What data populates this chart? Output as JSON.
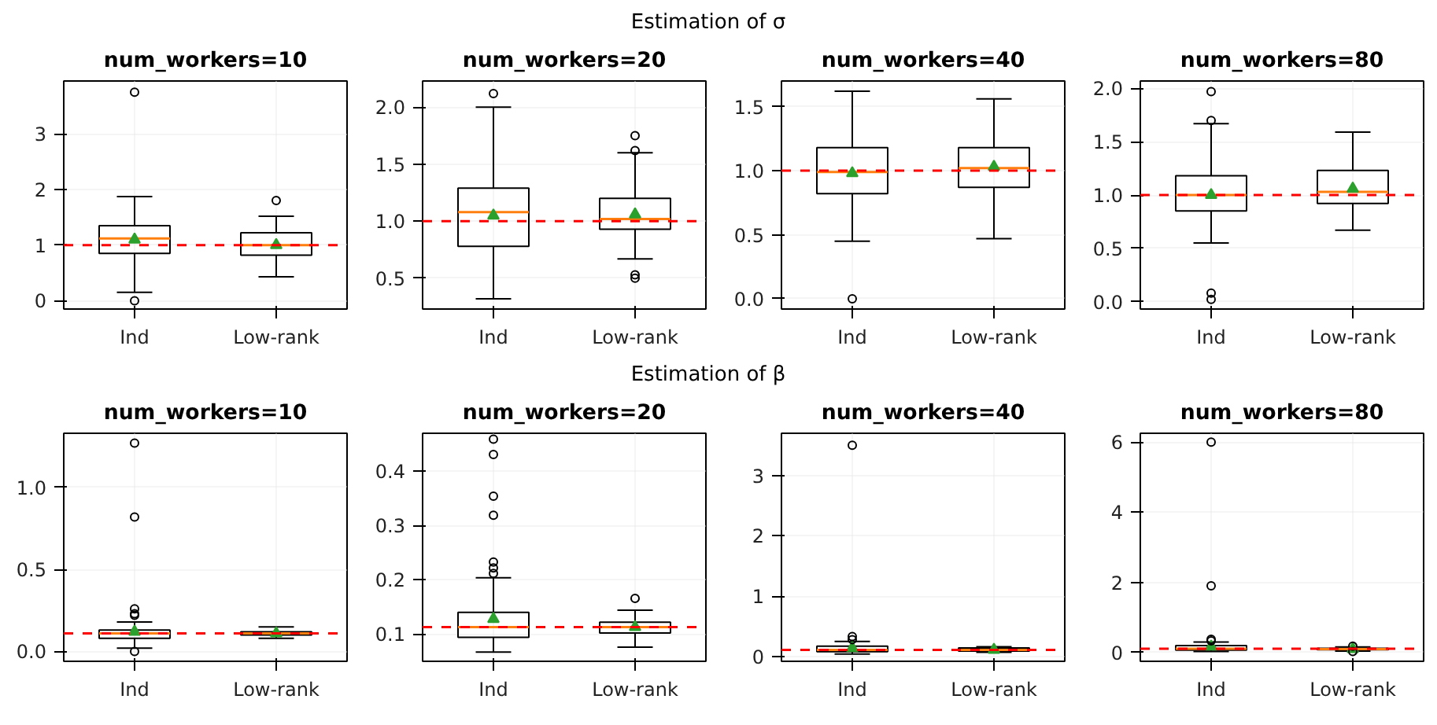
{
  "chart_data": [
    {
      "type": "box",
      "title": "num_workers=10",
      "annotations": [
        "Estimation of σ"
      ],
      "categories": [
        "Ind",
        "Low-rank"
      ],
      "ylim": [
        -0.15,
        3.95
      ],
      "yticks": [
        0,
        1,
        2,
        3
      ],
      "grid": true,
      "boxes": [
        {
          "low": 0.15,
          "q1": 0.85,
          "median": 1.12,
          "q3": 1.35,
          "high": 1.87,
          "mean": 1.1,
          "outliers": [
            3.75,
            0.0
          ]
        },
        {
          "low": 0.43,
          "q1": 0.82,
          "median": 1.0,
          "q3": 1.22,
          "high": 1.52,
          "mean": 1.0,
          "outliers": [
            1.8
          ]
        }
      ],
      "ref_lines": [
        {
          "axis": "y",
          "value": 1.0,
          "color": "#ff0000",
          "line_style": "dashed"
        }
      ]
    },
    {
      "type": "box",
      "title": "num_workers=20",
      "categories": [
        "Ind",
        "Low-rank"
      ],
      "ylim": [
        0.23,
        2.23
      ],
      "yticks": [
        {
          "value": 0.5,
          "label": "0.5"
        },
        {
          "value": 1.0,
          "label": "1.0"
        },
        {
          "value": 1.5,
          "label": "1.5"
        },
        {
          "value": 2.0,
          "label": "2.0"
        }
      ],
      "grid": true,
      "boxes": [
        {
          "low": 0.32,
          "q1": 0.78,
          "median": 1.08,
          "q3": 1.29,
          "high": 2.0,
          "mean": 1.05,
          "outliers": [
            2.12
          ]
        },
        {
          "low": 0.67,
          "q1": 0.93,
          "median": 1.02,
          "q3": 1.2,
          "high": 1.6,
          "mean": 1.06,
          "outliers": [
            1.75,
            1.62,
            0.53,
            0.5
          ]
        }
      ],
      "ref_lines": [
        {
          "axis": "y",
          "value": 1.0,
          "color": "#ff0000",
          "line_style": "dashed"
        }
      ]
    },
    {
      "type": "box",
      "title": "num_workers=40",
      "categories": [
        "Ind",
        "Low-rank"
      ],
      "ylim": [
        -0.08,
        1.7
      ],
      "yticks": [
        {
          "value": 0,
          "label": "0.0"
        },
        {
          "value": 0.5,
          "label": "0.5"
        },
        {
          "value": 1.0,
          "label": "1.0"
        },
        {
          "value": 1.5,
          "label": "1.5"
        }
      ],
      "grid": true,
      "boxes": [
        {
          "low": 0.45,
          "q1": 0.82,
          "median": 0.99,
          "q3": 1.18,
          "high": 1.62,
          "mean": 0.98,
          "outliers": [
            0.0
          ]
        },
        {
          "low": 0.47,
          "q1": 0.87,
          "median": 1.02,
          "q3": 1.18,
          "high": 1.56,
          "mean": 1.03
        }
      ],
      "ref_lines": [
        {
          "axis": "y",
          "value": 1.0,
          "color": "#ff0000",
          "line_style": "dashed"
        }
      ]
    },
    {
      "type": "box",
      "title": "num_workers=80",
      "categories": [
        "Ind",
        "Low-rank"
      ],
      "ylim": [
        -0.07,
        2.07
      ],
      "yticks": [
        {
          "value": 0,
          "label": "0.0"
        },
        {
          "value": 0.5,
          "label": "0.5"
        },
        {
          "value": 1.0,
          "label": "1.0"
        },
        {
          "value": 1.5,
          "label": "1.5"
        },
        {
          "value": 2.0,
          "label": "2.0"
        }
      ],
      "grid": true,
      "boxes": [
        {
          "low": 0.55,
          "q1": 0.85,
          "median": 1.0,
          "q3": 1.18,
          "high": 1.67,
          "mean": 1.0,
          "outliers": [
            1.97,
            1.7,
            0.08,
            0.02
          ]
        },
        {
          "low": 0.67,
          "q1": 0.92,
          "median": 1.03,
          "q3": 1.23,
          "high": 1.59,
          "mean": 1.06
        }
      ],
      "ref_lines": [
        {
          "axis": "y",
          "value": 1.0,
          "color": "#ff0000",
          "line_style": "dashed"
        }
      ]
    },
    {
      "type": "box",
      "title": "num_workers=10",
      "annotations": [
        "Estimation of β"
      ],
      "categories": [
        "Ind",
        "Low-rank"
      ],
      "ylim": [
        -0.06,
        1.33
      ],
      "yticks": [
        {
          "value": 0,
          "label": "0.0"
        },
        {
          "value": 0.5,
          "label": "0.5"
        },
        {
          "value": 1.0,
          "label": "1.0"
        }
      ],
      "grid": true,
      "boxes": [
        {
          "low": 0.02,
          "q1": 0.08,
          "median": 0.11,
          "q3": 0.13,
          "high": 0.18,
          "mean": 0.12,
          "outliers": [
            1.27,
            0.82,
            0.26,
            0.23,
            0.22,
            0.0
          ]
        },
        {
          "low": 0.08,
          "q1": 0.1,
          "median": 0.11,
          "q3": 0.12,
          "high": 0.15,
          "mean": 0.11
        }
      ],
      "ref_lines": [
        {
          "axis": "y",
          "value": 0.11,
          "color": "#ff0000",
          "line_style": "dashed"
        }
      ]
    },
    {
      "type": "box",
      "title": "num_workers=20",
      "categories": [
        "Ind",
        "Low-rank"
      ],
      "ylim": [
        0.05,
        0.47
      ],
      "yticks": [
        0.1,
        0.2,
        0.3,
        0.4
      ],
      "grid": true,
      "boxes": [
        {
          "low": 0.067,
          "q1": 0.094,
          "median": 0.113,
          "q3": 0.14,
          "high": 0.204,
          "mean": 0.128,
          "outliers": [
            0.459,
            0.431,
            0.354,
            0.319,
            0.233,
            0.222,
            0.212
          ]
        },
        {
          "low": 0.076,
          "q1": 0.102,
          "median": 0.113,
          "q3": 0.122,
          "high": 0.144,
          "mean": 0.113,
          "outliers": [
            0.166
          ]
        }
      ],
      "ref_lines": [
        {
          "axis": "y",
          "value": 0.113,
          "color": "#ff0000",
          "line_style": "dashed"
        }
      ]
    },
    {
      "type": "box",
      "title": "num_workers=40",
      "categories": [
        "Ind",
        "Low-rank"
      ],
      "ylim": [
        -0.08,
        3.7
      ],
      "yticks": [
        0,
        1,
        2,
        3
      ],
      "grid": true,
      "boxes": [
        {
          "low": 0.04,
          "q1": 0.08,
          "median": 0.11,
          "q3": 0.17,
          "high": 0.25,
          "mean": 0.14,
          "outliers": [
            3.5,
            0.33,
            0.28
          ]
        },
        {
          "low": 0.07,
          "q1": 0.09,
          "median": 0.11,
          "q3": 0.14,
          "high": 0.16,
          "mean": 0.11
        }
      ],
      "ref_lines": [
        {
          "axis": "y",
          "value": 0.11,
          "color": "#ff0000",
          "line_style": "dashed"
        }
      ]
    },
    {
      "type": "box",
      "title": "num_workers=80",
      "categories": [
        "Ind",
        "Low-rank"
      ],
      "ylim": [
        -0.25,
        6.25
      ],
      "yticks": [
        0,
        2,
        4,
        6
      ],
      "grid": true,
      "boxes": [
        {
          "low": 0.03,
          "q1": 0.07,
          "median": 0.11,
          "q3": 0.2,
          "high": 0.3,
          "mean": 0.17,
          "outliers": [
            6.0,
            1.9,
            0.38,
            0.33
          ]
        },
        {
          "low": 0.04,
          "q1": 0.08,
          "median": 0.1,
          "q3": 0.12,
          "high": 0.16,
          "mean": 0.1,
          "outliers": [
            0.18,
            0.03
          ]
        }
      ],
      "ref_lines": [
        {
          "axis": "y",
          "value": 0.11,
          "color": "#ff0000",
          "line_style": "dashed"
        }
      ]
    }
  ]
}
